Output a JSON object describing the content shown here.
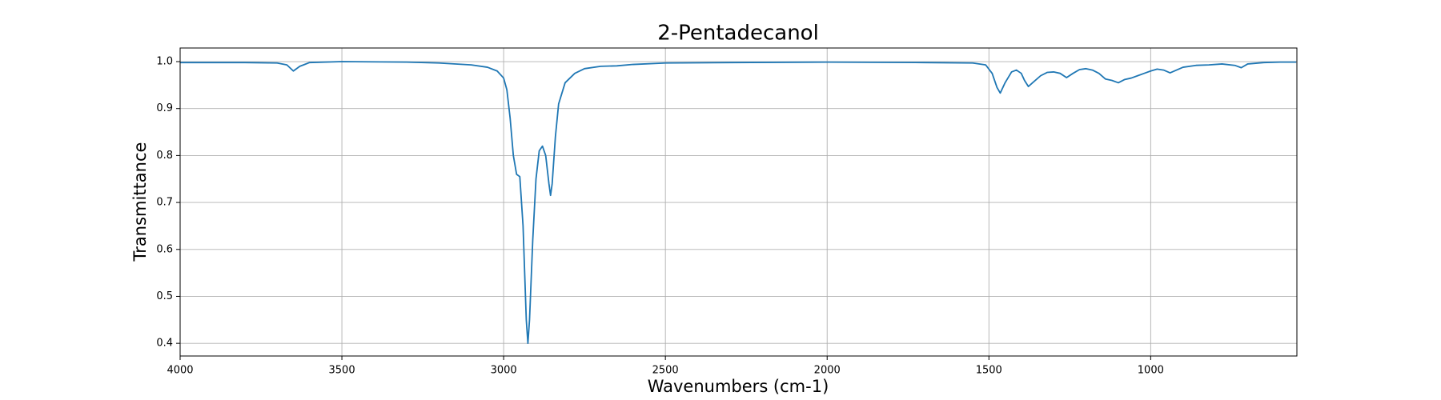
{
  "chart_data": {
    "type": "line",
    "title": "2-Pentadecanol",
    "x_label": "Wavenumbers (cm-1)",
    "y_label": "Transmittance",
    "xlim": [
      4000,
      548
    ],
    "ylim": [
      0.373,
      1.029
    ],
    "xticks": [
      4000,
      3500,
      3000,
      2500,
      2000,
      1500,
      1000
    ],
    "yticks": [
      0.4,
      0.5,
      0.6,
      0.7,
      0.8,
      0.9,
      {
        "value": 1,
        "label": "1.0"
      }
    ],
    "grid": true,
    "x": [
      4000,
      3800,
      3700,
      3670,
      3650,
      3630,
      3600,
      3500,
      3300,
      3200,
      3100,
      3050,
      3020,
      3000,
      2990,
      2980,
      2970,
      2960,
      2950,
      2940,
      2930,
      2925,
      2920,
      2910,
      2900,
      2890,
      2880,
      2870,
      2860,
      2855,
      2850,
      2840,
      2830,
      2810,
      2780,
      2750,
      2700,
      2650,
      2600,
      2500,
      2300,
      2000,
      1700,
      1550,
      1510,
      1490,
      1475,
      1465,
      1450,
      1430,
      1415,
      1400,
      1390,
      1378,
      1365,
      1340,
      1320,
      1300,
      1280,
      1260,
      1240,
      1220,
      1200,
      1180,
      1160,
      1140,
      1120,
      1100,
      1080,
      1060,
      1040,
      1020,
      1000,
      980,
      960,
      940,
      920,
      900,
      860,
      820,
      780,
      740,
      720,
      700,
      650,
      600,
      550
    ],
    "series": [
      {
        "color": "#1f77b4",
        "values": [
          0.998,
          0.998,
          0.997,
          0.993,
          0.98,
          0.99,
          0.998,
          1.0,
          0.999,
          0.997,
          0.993,
          0.988,
          0.98,
          0.965,
          0.94,
          0.88,
          0.8,
          0.76,
          0.755,
          0.65,
          0.45,
          0.4,
          0.45,
          0.62,
          0.75,
          0.81,
          0.82,
          0.8,
          0.74,
          0.715,
          0.74,
          0.84,
          0.91,
          0.955,
          0.975,
          0.985,
          0.99,
          0.991,
          0.994,
          0.997,
          0.998,
          0.999,
          0.998,
          0.997,
          0.993,
          0.975,
          0.945,
          0.933,
          0.955,
          0.978,
          0.982,
          0.975,
          0.96,
          0.947,
          0.955,
          0.97,
          0.977,
          0.978,
          0.975,
          0.966,
          0.975,
          0.983,
          0.985,
          0.982,
          0.975,
          0.963,
          0.96,
          0.955,
          0.962,
          0.965,
          0.97,
          0.975,
          0.98,
          0.984,
          0.982,
          0.976,
          0.982,
          0.988,
          0.992,
          0.993,
          0.995,
          0.992,
          0.987,
          0.995,
          0.998,
          0.999,
          0.999
        ]
      }
    ]
  }
}
